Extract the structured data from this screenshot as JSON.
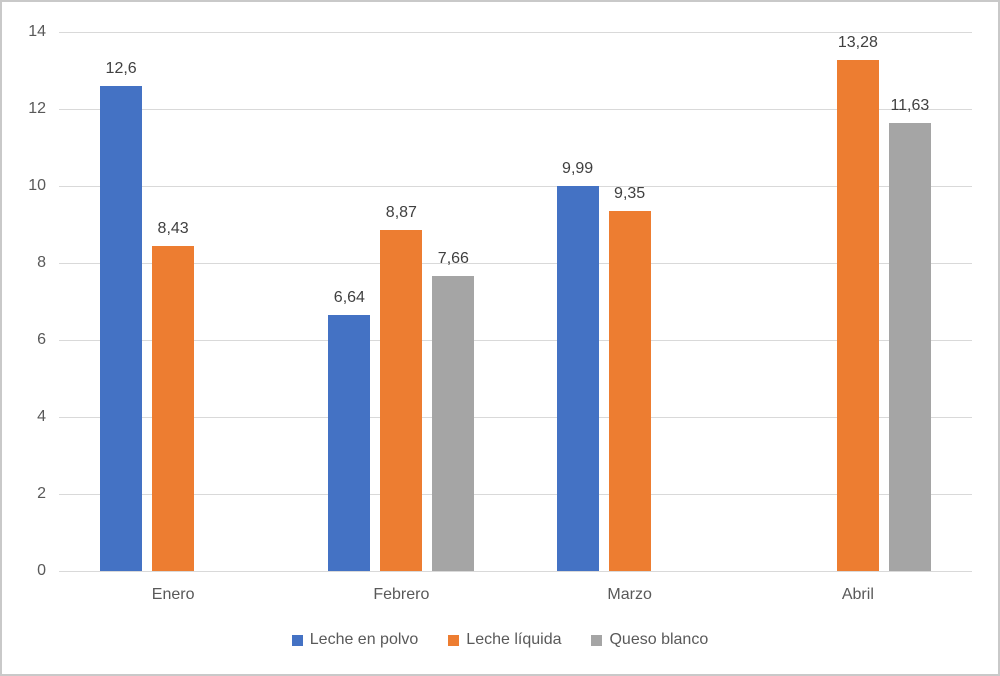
{
  "chart_data": {
    "type": "bar",
    "title": "",
    "xlabel": "",
    "ylabel": "",
    "categories": [
      "Enero",
      "Febrero",
      "Marzo",
      "Abril"
    ],
    "series": [
      {
        "name": "Leche en polvo",
        "color": "#4472C4",
        "values": [
          12.6,
          6.64,
          9.99,
          null
        ]
      },
      {
        "name": "Leche líquida",
        "color": "#ED7D31",
        "values": [
          8.43,
          8.87,
          9.35,
          13.28
        ]
      },
      {
        "name": "Queso blanco",
        "color": "#A5A5A5",
        "values": [
          null,
          7.66,
          null,
          11.63
        ]
      }
    ],
    "data_labels_shown": true,
    "decimal_separator": ",",
    "ylim": [
      0,
      14
    ],
    "y_ticks": [
      "0",
      "2",
      "4",
      "6",
      "8",
      "10",
      "12",
      "14"
    ],
    "grid": true,
    "legend_position": "bottom"
  },
  "colors": {
    "gridline": "#D9D9D9",
    "axis_label": "#595959",
    "data_label": "#404040",
    "chart_border": "#C9C9C9",
    "background": "#FFFFFF"
  }
}
